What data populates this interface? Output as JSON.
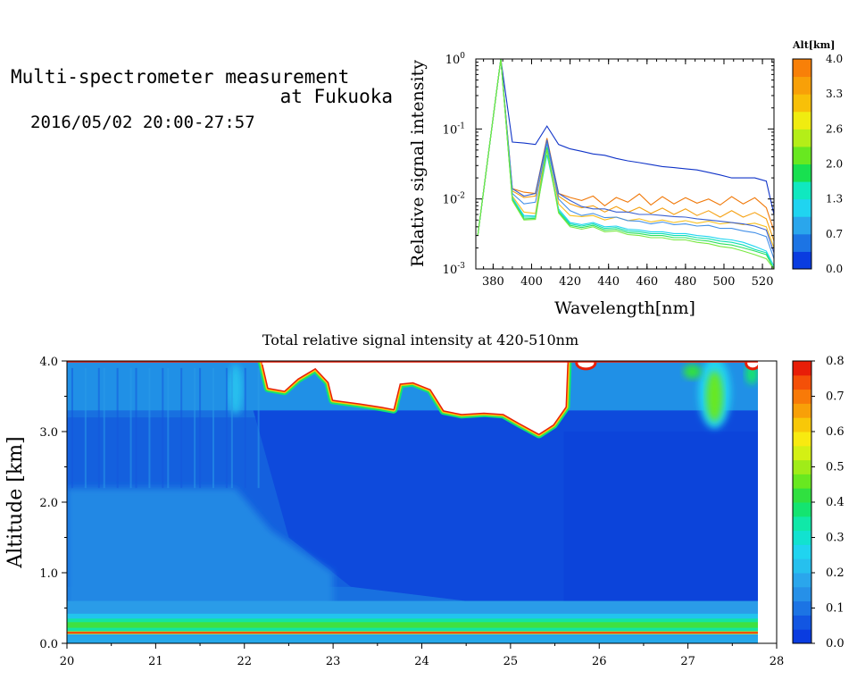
{
  "header": {
    "title_line1": "Multi-spectrometer measurement",
    "title_line2": "at Fukuoka",
    "subtitle": "2016/05/02 20:00-27:57"
  },
  "chart_data": [
    {
      "type": "line",
      "xlabel": "Wavelength[nm]",
      "ylabel": "Relative signal intensity",
      "yscale": "log",
      "xlim": [
        371,
        526
      ],
      "ylim": [
        0.001,
        1
      ],
      "x_ticks": [
        380,
        400,
        420,
        440,
        460,
        480,
        500,
        520
      ],
      "y_ticks": [
        {
          "value": 1,
          "base": "10",
          "exp": "0"
        },
        {
          "value": 0.1,
          "base": "10",
          "exp": "-1"
        },
        {
          "value": 0.01,
          "base": "10",
          "exp": "-2"
        },
        {
          "value": 0.001,
          "base": "10",
          "exp": "-3"
        }
      ],
      "grid": false,
      "x": [
        372,
        384,
        390,
        396,
        402,
        408,
        414,
        420,
        426,
        432,
        438,
        444,
        450,
        456,
        462,
        468,
        474,
        480,
        486,
        492,
        498,
        504,
        510,
        516,
        522,
        526
      ],
      "series": [
        {
          "color": "#1034c8",
          "values": [
            0.003,
            1.0,
            0.065,
            0.063,
            0.06,
            0.11,
            0.06,
            0.052,
            0.048,
            0.044,
            0.042,
            0.038,
            0.035,
            0.033,
            0.031,
            0.029,
            0.028,
            0.027,
            0.026,
            0.024,
            0.022,
            0.02,
            0.02,
            0.02,
            0.018,
            0.006
          ]
        },
        {
          "color": "#f07808",
          "values": [
            0.003,
            1.0,
            0.014,
            0.0125,
            0.012,
            0.074,
            0.012,
            0.0105,
            0.0095,
            0.011,
            0.008,
            0.0105,
            0.009,
            0.0118,
            0.0082,
            0.0108,
            0.0085,
            0.0104,
            0.0087,
            0.01,
            0.0082,
            0.0108,
            0.0085,
            0.0104,
            0.0075,
            0.0035
          ]
        },
        {
          "color": "#f5a010",
          "values": [
            0.003,
            1.0,
            0.013,
            0.0105,
            0.011,
            0.07,
            0.011,
            0.0085,
            0.0075,
            0.008,
            0.0065,
            0.0078,
            0.0064,
            0.0076,
            0.0062,
            0.0074,
            0.006,
            0.0072,
            0.0058,
            0.0068,
            0.0055,
            0.0068,
            0.0055,
            0.0064,
            0.0052,
            0.0025
          ]
        },
        {
          "color": "#f8c020",
          "values": [
            0.003,
            1.0,
            0.011,
            0.0065,
            0.0062,
            0.065,
            0.0085,
            0.0058,
            0.0056,
            0.0058,
            0.005,
            0.0055,
            0.0049,
            0.0052,
            0.0047,
            0.005,
            0.0046,
            0.0049,
            0.0045,
            0.0048,
            0.0044,
            0.0046,
            0.0043,
            0.0045,
            0.004,
            0.002
          ]
        },
        {
          "color": "#3a60d0",
          "values": [
            0.003,
            1.0,
            0.014,
            0.011,
            0.012,
            0.07,
            0.012,
            0.0095,
            0.0078,
            0.0072,
            0.0072,
            0.0065,
            0.0065,
            0.006,
            0.006,
            0.0058,
            0.0056,
            0.0055,
            0.0052,
            0.005,
            0.0048,
            0.0046,
            0.0044,
            0.0041,
            0.0036,
            0.0017
          ]
        },
        {
          "color": "#4490e8",
          "values": [
            0.003,
            1.0,
            0.012,
            0.0085,
            0.009,
            0.062,
            0.01,
            0.0068,
            0.0058,
            0.0062,
            0.0054,
            0.0055,
            0.0049,
            0.0048,
            0.0044,
            0.0047,
            0.0043,
            0.0044,
            0.0041,
            0.0042,
            0.0038,
            0.0038,
            0.0035,
            0.0033,
            0.0029,
            0.0014
          ]
        },
        {
          "color": "#20d4f0",
          "values": [
            0.003,
            1.0,
            0.0105,
            0.0058,
            0.0057,
            0.043,
            0.0072,
            0.0046,
            0.0043,
            0.0046,
            0.004,
            0.0041,
            0.0037,
            0.0036,
            0.0034,
            0.0034,
            0.0032,
            0.0032,
            0.003,
            0.0029,
            0.0027,
            0.0026,
            0.0024,
            0.0021,
            0.0018,
            0.0011
          ]
        },
        {
          "color": "#10e0b0",
          "values": [
            0.003,
            1.0,
            0.01,
            0.0055,
            0.0055,
            0.05,
            0.0068,
            0.0044,
            0.0041,
            0.0044,
            0.0038,
            0.0039,
            0.0035,
            0.0034,
            0.0032,
            0.0032,
            0.003,
            0.003,
            0.0028,
            0.0027,
            0.0025,
            0.0024,
            0.0022,
            0.0019,
            0.0017,
            0.001
          ]
        },
        {
          "color": "#30e060",
          "values": [
            0.003,
            1.0,
            0.0098,
            0.0052,
            0.0053,
            0.055,
            0.0065,
            0.0042,
            0.0039,
            0.0042,
            0.0036,
            0.0037,
            0.0033,
            0.0032,
            0.003,
            0.003,
            0.0028,
            0.0028,
            0.0026,
            0.0025,
            0.0023,
            0.0022,
            0.002,
            0.0018,
            0.0016,
            0.001
          ]
        },
        {
          "color": "#78e840",
          "values": [
            0.003,
            1.0,
            0.0095,
            0.005,
            0.0051,
            0.05,
            0.0063,
            0.004,
            0.0037,
            0.004,
            0.0034,
            0.0035,
            0.0031,
            0.003,
            0.0028,
            0.0028,
            0.0026,
            0.0026,
            0.0024,
            0.0023,
            0.0021,
            0.002,
            0.0018,
            0.0016,
            0.0014,
            0.001
          ]
        }
      ],
      "colorbar": {
        "label": "Alt[km]",
        "tick_labels": [
          "0.0",
          "0.7",
          "1.3",
          "2.0",
          "2.6",
          "3.3",
          "4.0"
        ],
        "colors": [
          "#0a3ce0",
          "#1c74e4",
          "#2aa6ec",
          "#20d4f0",
          "#10e8c0",
          "#18e050",
          "#68e820",
          "#b4ee18",
          "#f0ec10",
          "#f8c008",
          "#f8a008",
          "#f88008"
        ]
      }
    },
    {
      "type": "heatmap",
      "title": "Total relative signal intensity at 420-510nm",
      "ylabel": "Altitude [km]",
      "xlim": [
        20,
        28
      ],
      "ylim": [
        0,
        4
      ],
      "data_xlim": [
        20,
        27.8
      ],
      "x_ticks": [
        "20",
        "21",
        "22",
        "23",
        "24",
        "25",
        "26",
        "27",
        "28"
      ],
      "y_ticks": [
        "0.0",
        "1.0",
        "2.0",
        "3.0",
        "4.0"
      ],
      "cloud_base": [
        [
          22.2,
          4.0
        ],
        [
          22.27,
          3.62
        ],
        [
          22.45,
          3.58
        ],
        [
          22.6,
          3.75
        ],
        [
          22.8,
          3.9
        ],
        [
          22.95,
          3.7
        ],
        [
          23.0,
          3.45
        ],
        [
          23.3,
          3.4
        ],
        [
          23.55,
          3.35
        ],
        [
          23.68,
          3.32
        ],
        [
          23.75,
          3.68
        ],
        [
          23.9,
          3.7
        ],
        [
          24.1,
          3.6
        ],
        [
          24.25,
          3.3
        ],
        [
          24.45,
          3.25
        ],
        [
          24.7,
          3.27
        ],
        [
          24.92,
          3.25
        ],
        [
          25.1,
          3.12
        ],
        [
          25.32,
          2.97
        ],
        [
          25.48,
          3.1
        ],
        [
          25.62,
          3.35
        ],
        [
          25.64,
          4.0
        ]
      ],
      "colorbar": {
        "tick_labels": [
          "0.0",
          "0.1",
          "0.2",
          "0.3",
          "0.4",
          "0.5",
          "0.6",
          "0.7",
          "0.8"
        ],
        "colors": [
          "#0a3ce0",
          "#1256e2",
          "#1c74e4",
          "#2690e8",
          "#2aa6ec",
          "#26c0ee",
          "#20d4f0",
          "#12e2d0",
          "#10e8a8",
          "#14e470",
          "#30e040",
          "#68e820",
          "#a0ec18",
          "#d4f014",
          "#f8ea10",
          "#f8c808",
          "#f8a008",
          "#f87a08",
          "#f45008",
          "#e81e08"
        ]
      }
    }
  ]
}
